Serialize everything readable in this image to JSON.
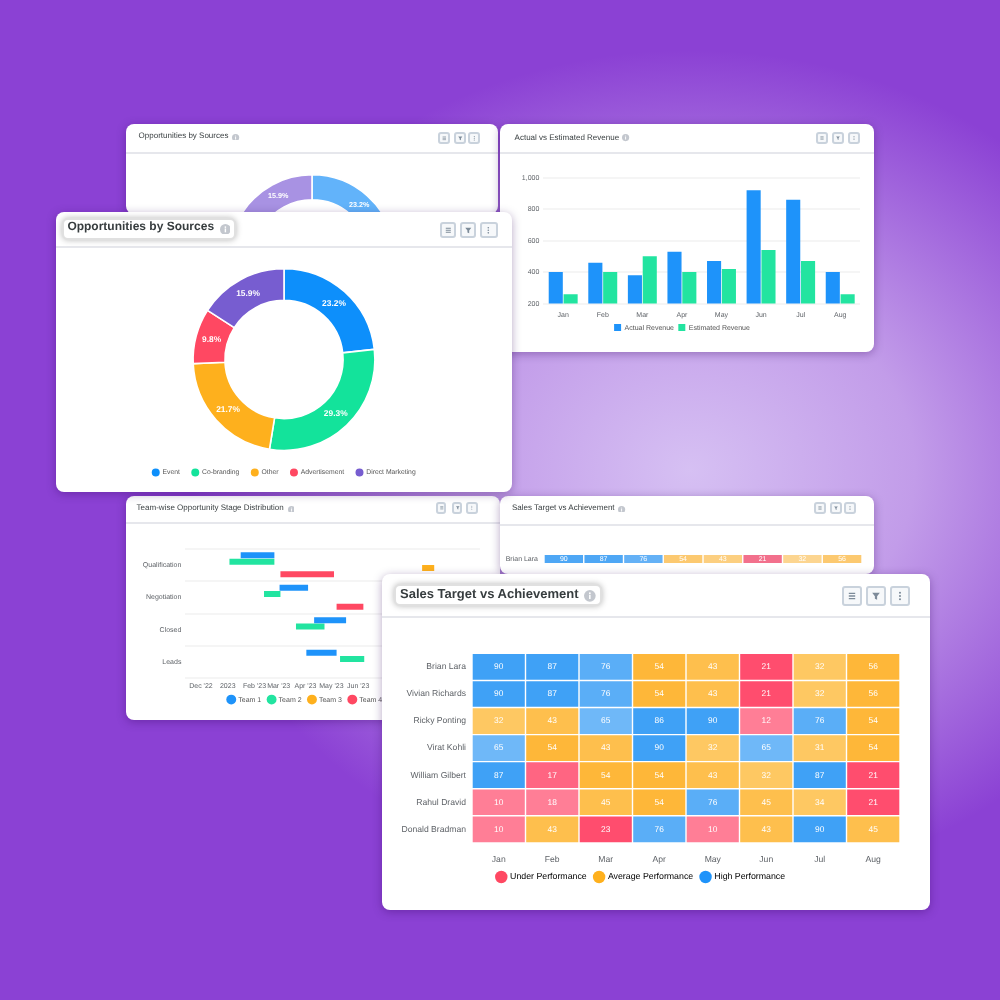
{
  "chart_data": [
    {
      "type": "donut",
      "title": "Opportunities by Sources",
      "categories": [
        null,
        null,
        null,
        null,
        null
      ],
      "values": [
        23.2,
        null,
        null,
        null,
        15.9
      ],
      "colors": [
        "#62b3fa",
        "#6fe9bf",
        "#fdcb6a",
        "#f8809a",
        "#a892e3"
      ],
      "value_labels": [
        "23.2%",
        null,
        null,
        null,
        "15.9%"
      ]
    },
    {
      "type": "bar",
      "title": "Actual vs Estimated Revenue",
      "categories": [
        "Jan",
        "Feb",
        "Mar",
        "Apr",
        "May",
        "Jun",
        "Jul",
        "Aug"
      ],
      "series": [
        {
          "name": "Actual Revenue",
          "color": "#1e93fa",
          "values": [
            400,
            460,
            380,
            530,
            470,
            920,
            860,
            400
          ]
        },
        {
          "name": "Estimated Revenue",
          "color": "#22e4a0",
          "values": [
            260,
            400,
            500,
            400,
            420,
            540,
            470,
            260
          ]
        }
      ],
      "ylim": [
        200,
        1000
      ],
      "yticks": [
        200,
        400,
        600,
        800,
        {
          "value": 1000,
          "label": "1,000"
        }
      ],
      "grid": "y",
      "legend": "bottom"
    },
    {
      "type": "donut",
      "title": "Opportunities by Sources",
      "categories": [
        "Event",
        "Co-branding",
        "Other",
        "Advertisement",
        "Direct Marketing"
      ],
      "values": [
        23.2,
        29.3,
        21.7,
        9.8,
        15.9
      ],
      "colors": [
        "#0d8ffb",
        "#13e39b",
        "#feb01d",
        "#ff4862",
        "#775dd0"
      ],
      "value_labels": [
        "23.2%",
        "29.3%",
        "21.7%",
        "9.8%",
        "15.9%"
      ],
      "legend": "bottom"
    },
    {
      "type": "bar",
      "orientation": "horizontal",
      "title": "Team-wise Opportunity Stage Distribution",
      "categories": [
        "Qualification",
        "Negotiation",
        "Closed",
        "Leads"
      ],
      "series": [
        {
          "name": "Team 1",
          "color": "#1e93fa",
          "base": [
            19373,
            19418,
            19458,
            19449
          ],
          "values": [
            39,
            33,
            37,
            35
          ]
        },
        {
          "name": "Team 2",
          "color": "#22e4a0",
          "base": [
            19360,
            19400,
            19437,
            19488
          ],
          "values": [
            52,
            19,
            33,
            28
          ]
        },
        {
          "name": "Team 3",
          "color": "#feb01d",
          "base": [
            19583,
            null,
            null,
            null
          ],
          "values": [
            14,
            null,
            null,
            null
          ]
        },
        {
          "name": "Team 4",
          "color": "#ff4862",
          "base": [
            19419,
            19484,
            null,
            null
          ],
          "values": [
            62,
            31,
            null,
            null
          ]
        }
      ],
      "xlim": [
        "2022-11-13",
        "2023-10-20"
      ],
      "xticks": [
        {
          "value": "2022-12-01",
          "label": "Dec '22"
        },
        {
          "value": "2023-01-01",
          "label": "2023"
        },
        {
          "value": "2023-02-01",
          "label": "Feb '23"
        },
        {
          "value": "2023-03-01",
          "label": "Mar '23"
        },
        {
          "value": "2023-04-01",
          "label": "Apr '23"
        },
        {
          "value": "2023-05-01",
          "label": "May '23"
        },
        {
          "value": "2023-06-01",
          "label": "Jun '23"
        }
      ],
      "grid": "y",
      "legend": "bottom"
    },
    {
      "type": "heatmap",
      "title": "Sales Target vs Achievement",
      "categories": [
        null,
        null,
        null,
        null,
        null,
        null,
        null,
        null
      ],
      "y_categories": [
        "Brian Lara"
      ],
      "cells": [
        [
          90,
          87,
          76,
          54,
          43,
          21,
          32,
          56
        ]
      ],
      "colors": [
        [
          "#4ea7f5",
          "#4ea7f5",
          "#64b1f6",
          "#fcc970",
          "#fccf80",
          "#f2708c",
          "#fcd590",
          "#fcc970"
        ]
      ],
      "data_labels": true,
      "tick_labels": "y"
    },
    {
      "type": "heatmap",
      "title": "Sales Target vs Achievement",
      "categories": [
        "Jan",
        "Feb",
        "Mar",
        "Apr",
        "May",
        "Jun",
        "Jul",
        "Aug"
      ],
      "y_categories": [
        "Brian Lara",
        "Vivian Richards",
        "Ricky Ponting",
        "Virat Kohli",
        "William Gilbert",
        "Rahul Dravid",
        "Donald Bradman"
      ],
      "cells": [
        [
          90,
          87,
          76,
          54,
          43,
          21,
          32,
          56
        ],
        [
          90,
          87,
          76,
          54,
          43,
          21,
          32,
          56
        ],
        [
          32,
          43,
          65,
          86,
          90,
          12,
          76,
          54
        ],
        [
          65,
          54,
          43,
          90,
          32,
          65,
          31,
          54
        ],
        [
          87,
          17,
          54,
          54,
          43,
          32,
          87,
          21
        ],
        [
          10,
          18,
          45,
          54,
          76,
          45,
          34,
          21
        ],
        [
          10,
          43,
          23,
          76,
          10,
          43,
          90,
          45
        ]
      ],
      "colors": [
        [
          "#3fa1f6",
          "#3fa1f6",
          "#5aaef7",
          "#feb739",
          "#febf4d",
          "#ff4d6e",
          "#fec862",
          "#feb739"
        ],
        [
          "#3fa1f6",
          "#3fa1f6",
          "#5aaef7",
          "#feb739",
          "#febf4d",
          "#ff4d6e",
          "#fec862",
          "#feb739"
        ],
        [
          "#fec862",
          "#febf4d",
          "#6fb8f8",
          "#3fa1f6",
          "#3fa1f6",
          "#ff7e96",
          "#5aaef7",
          "#feb739"
        ],
        [
          "#6fb8f8",
          "#feb739",
          "#febf4d",
          "#3fa1f6",
          "#fec862",
          "#6fb8f8",
          "#fec862",
          "#feb739"
        ],
        [
          "#3fa1f6",
          "#ff6582",
          "#feb739",
          "#feb739",
          "#febf4d",
          "#fec862",
          "#3fa1f6",
          "#ff4d6e"
        ],
        [
          "#ff7e96",
          "#ff7e96",
          "#febf4d",
          "#feb739",
          "#5aaef7",
          "#febf4d",
          "#fec862",
          "#ff4d6e"
        ],
        [
          "#ff7e96",
          "#febf4d",
          "#ff4d6e",
          "#5aaef7",
          "#ff7e96",
          "#febf4d",
          "#3fa1f6",
          "#febf4d"
        ]
      ],
      "series": [
        {
          "name": "Under Performance",
          "color": "#ff4862",
          "values": [
            null,
            null,
            null,
            null,
            null,
            null,
            null,
            null
          ]
        },
        {
          "name": "Average Performance",
          "color": "#feb01d",
          "values": [
            null,
            null,
            null,
            null,
            null,
            null,
            null,
            null
          ]
        },
        {
          "name": "High Performance",
          "color": "#1e93fa",
          "values": [
            null,
            null,
            null,
            null,
            null,
            null,
            null,
            null
          ]
        }
      ],
      "data_labels": true,
      "legend": "bottom"
    }
  ]
}
